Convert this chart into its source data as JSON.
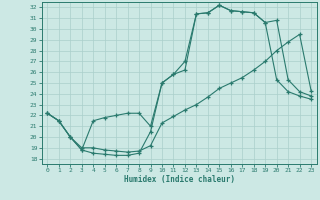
{
  "xlabel": "Humidex (Indice chaleur)",
  "xlim": [
    -0.5,
    23.5
  ],
  "ylim": [
    17.5,
    32.5
  ],
  "xticks": [
    0,
    1,
    2,
    3,
    4,
    5,
    6,
    7,
    8,
    9,
    10,
    11,
    12,
    13,
    14,
    15,
    16,
    17,
    18,
    19,
    20,
    21,
    22,
    23
  ],
  "yticks": [
    18,
    19,
    20,
    21,
    22,
    23,
    24,
    25,
    26,
    27,
    28,
    29,
    30,
    31,
    32
  ],
  "line_color": "#2a7a6e",
  "bg_color": "#cce8e4",
  "grid_color": "#aacfcb",
  "line1_x": [
    0,
    1,
    2,
    3,
    4,
    5,
    6,
    7,
    8,
    9,
    10,
    11,
    12,
    13,
    14,
    15,
    16,
    17,
    18,
    19,
    20,
    21,
    22,
    23
  ],
  "line1_y": [
    22.2,
    21.5,
    20.0,
    18.8,
    18.5,
    18.4,
    18.3,
    18.3,
    18.5,
    20.5,
    25.0,
    25.8,
    26.2,
    31.4,
    31.5,
    32.2,
    31.7,
    31.6,
    31.5,
    30.6,
    25.3,
    24.2,
    23.8,
    23.5
  ],
  "line2_x": [
    0,
    1,
    2,
    3,
    4,
    5,
    6,
    7,
    8,
    9,
    10,
    11,
    12,
    13,
    14,
    15,
    16,
    17,
    18,
    19,
    20,
    21,
    22,
    23
  ],
  "line2_y": [
    22.2,
    21.5,
    20.0,
    18.8,
    21.5,
    21.8,
    22.0,
    22.2,
    22.2,
    21.0,
    25.0,
    25.8,
    27.0,
    31.4,
    31.5,
    32.2,
    31.7,
    31.6,
    31.5,
    30.6,
    30.8,
    25.3,
    24.2,
    23.8
  ],
  "line3_x": [
    0,
    1,
    2,
    3,
    4,
    5,
    6,
    7,
    8,
    9,
    10,
    11,
    12,
    13,
    14,
    15,
    16,
    17,
    18,
    19,
    20,
    21,
    22,
    23
  ],
  "line3_y": [
    22.2,
    21.5,
    20.0,
    19.0,
    19.0,
    18.8,
    18.7,
    18.6,
    18.7,
    19.2,
    21.3,
    21.9,
    22.5,
    23.0,
    23.7,
    24.5,
    25.0,
    25.5,
    26.2,
    27.0,
    28.0,
    28.8,
    29.5,
    24.3
  ]
}
